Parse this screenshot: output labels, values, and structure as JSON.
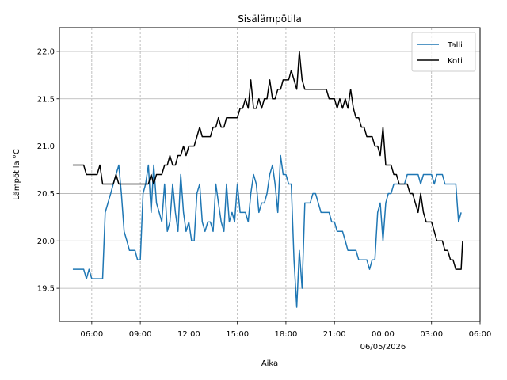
{
  "chart_data": {
    "type": "line",
    "title": "Sisälämpötila",
    "xlabel": "Aika",
    "ylabel": "Lämpötila °C",
    "x_unit": "hours",
    "xlim": [
      4.0,
      30.0
    ],
    "ylim": [
      19.15,
      22.25
    ],
    "x_ticks": [
      {
        "x": 6,
        "label": "06:00"
      },
      {
        "x": 9,
        "label": "09:00"
      },
      {
        "x": 12,
        "label": "12:00"
      },
      {
        "x": 15,
        "label": "15:00"
      },
      {
        "x": 18,
        "label": "18:00"
      },
      {
        "x": 21,
        "label": "21:00"
      },
      {
        "x": 24,
        "label": "00:00"
      },
      {
        "x": 27,
        "label": "03:00"
      },
      {
        "x": 30,
        "label": "06:00"
      }
    ],
    "x_date_label": {
      "x": 24,
      "label": "06/05/2026"
    },
    "y_ticks": [
      19.5,
      20.0,
      20.5,
      21.0,
      21.5,
      22.0
    ],
    "y_tick_labels": [
      "19.5",
      "20.0",
      "20.5",
      "21.0",
      "21.5",
      "22.0"
    ],
    "grid": {
      "horizontal": "solid",
      "vertical": "dashed"
    },
    "legend_position": "top-right",
    "series": [
      {
        "name": "Talli",
        "color": "#1f77b4",
        "points": [
          [
            4.83,
            19.7
          ],
          [
            5.17,
            19.7
          ],
          [
            5.5,
            19.7
          ],
          [
            5.67,
            19.6
          ],
          [
            5.83,
            19.7
          ],
          [
            6.0,
            19.6
          ],
          [
            6.33,
            19.6
          ],
          [
            6.5,
            19.6
          ],
          [
            6.67,
            19.6
          ],
          [
            6.83,
            20.3
          ],
          [
            7.0,
            20.4
          ],
          [
            7.17,
            20.5
          ],
          [
            7.33,
            20.6
          ],
          [
            7.5,
            20.7
          ],
          [
            7.67,
            20.8
          ],
          [
            7.83,
            20.5
          ],
          [
            8.0,
            20.1
          ],
          [
            8.17,
            20.0
          ],
          [
            8.33,
            19.9
          ],
          [
            8.5,
            19.9
          ],
          [
            8.67,
            19.9
          ],
          [
            8.83,
            19.8
          ],
          [
            9.0,
            19.8
          ],
          [
            9.17,
            20.5
          ],
          [
            9.33,
            20.6
          ],
          [
            9.5,
            20.8
          ],
          [
            9.67,
            20.3
          ],
          [
            9.83,
            20.8
          ],
          [
            10.0,
            20.4
          ],
          [
            10.17,
            20.3
          ],
          [
            10.33,
            20.2
          ],
          [
            10.5,
            20.6
          ],
          [
            10.67,
            20.1
          ],
          [
            10.83,
            20.2
          ],
          [
            11.0,
            20.6
          ],
          [
            11.17,
            20.3
          ],
          [
            11.33,
            20.1
          ],
          [
            11.5,
            20.7
          ],
          [
            11.67,
            20.3
          ],
          [
            11.83,
            20.1
          ],
          [
            12.0,
            20.2
          ],
          [
            12.17,
            20.0
          ],
          [
            12.33,
            20.0
          ],
          [
            12.5,
            20.5
          ],
          [
            12.67,
            20.6
          ],
          [
            12.83,
            20.2
          ],
          [
            13.0,
            20.1
          ],
          [
            13.17,
            20.2
          ],
          [
            13.33,
            20.2
          ],
          [
            13.5,
            20.1
          ],
          [
            13.67,
            20.6
          ],
          [
            13.83,
            20.4
          ],
          [
            14.0,
            20.2
          ],
          [
            14.17,
            20.1
          ],
          [
            14.33,
            20.6
          ],
          [
            14.5,
            20.2
          ],
          [
            14.67,
            20.3
          ],
          [
            14.83,
            20.2
          ],
          [
            15.0,
            20.6
          ],
          [
            15.17,
            20.3
          ],
          [
            15.33,
            20.3
          ],
          [
            15.5,
            20.3
          ],
          [
            15.67,
            20.2
          ],
          [
            15.83,
            20.5
          ],
          [
            16.0,
            20.7
          ],
          [
            16.17,
            20.6
          ],
          [
            16.33,
            20.3
          ],
          [
            16.5,
            20.4
          ],
          [
            16.67,
            20.4
          ],
          [
            16.83,
            20.5
          ],
          [
            17.0,
            20.7
          ],
          [
            17.17,
            20.8
          ],
          [
            17.33,
            20.6
          ],
          [
            17.5,
            20.3
          ],
          [
            17.67,
            20.9
          ],
          [
            17.83,
            20.7
          ],
          [
            18.0,
            20.7
          ],
          [
            18.17,
            20.6
          ],
          [
            18.33,
            20.6
          ],
          [
            18.5,
            19.8
          ],
          [
            18.67,
            19.3
          ],
          [
            18.83,
            19.9
          ],
          [
            19.0,
            19.5
          ],
          [
            19.17,
            20.4
          ],
          [
            19.33,
            20.4
          ],
          [
            19.5,
            20.4
          ],
          [
            19.67,
            20.5
          ],
          [
            19.83,
            20.5
          ],
          [
            20.0,
            20.4
          ],
          [
            20.17,
            20.3
          ],
          [
            20.33,
            20.3
          ],
          [
            20.5,
            20.3
          ],
          [
            20.67,
            20.3
          ],
          [
            20.83,
            20.2
          ],
          [
            21.0,
            20.2
          ],
          [
            21.17,
            20.1
          ],
          [
            21.33,
            20.1
          ],
          [
            21.5,
            20.1
          ],
          [
            21.67,
            20.0
          ],
          [
            21.83,
            19.9
          ],
          [
            22.0,
            19.9
          ],
          [
            22.17,
            19.9
          ],
          [
            22.33,
            19.9
          ],
          [
            22.5,
            19.8
          ],
          [
            22.67,
            19.8
          ],
          [
            22.83,
            19.8
          ],
          [
            23.0,
            19.8
          ],
          [
            23.17,
            19.7
          ],
          [
            23.33,
            19.8
          ],
          [
            23.5,
            19.8
          ],
          [
            23.67,
            20.3
          ],
          [
            23.83,
            20.4
          ],
          [
            24.0,
            20.0
          ],
          [
            24.17,
            20.4
          ],
          [
            24.33,
            20.5
          ],
          [
            24.5,
            20.5
          ],
          [
            24.67,
            20.6
          ],
          [
            24.83,
            20.6
          ],
          [
            25.0,
            20.6
          ],
          [
            25.17,
            20.6
          ],
          [
            25.33,
            20.6
          ],
          [
            25.5,
            20.7
          ],
          [
            25.67,
            20.7
          ],
          [
            25.83,
            20.7
          ],
          [
            26.0,
            20.7
          ],
          [
            26.17,
            20.7
          ],
          [
            26.33,
            20.6
          ],
          [
            26.5,
            20.7
          ],
          [
            26.67,
            20.7
          ],
          [
            26.83,
            20.7
          ],
          [
            27.0,
            20.7
          ],
          [
            27.17,
            20.6
          ],
          [
            27.33,
            20.7
          ],
          [
            27.5,
            20.7
          ],
          [
            27.67,
            20.7
          ],
          [
            27.83,
            20.6
          ],
          [
            28.0,
            20.6
          ],
          [
            28.17,
            20.6
          ],
          [
            28.33,
            20.6
          ],
          [
            28.5,
            20.6
          ],
          [
            28.67,
            20.2
          ],
          [
            28.83,
            20.3
          ]
        ]
      },
      {
        "name": "Koti",
        "color": "#000000",
        "points": [
          [
            4.83,
            20.8
          ],
          [
            5.17,
            20.8
          ],
          [
            5.5,
            20.8
          ],
          [
            5.67,
            20.7
          ],
          [
            5.83,
            20.7
          ],
          [
            6.0,
            20.7
          ],
          [
            6.17,
            20.7
          ],
          [
            6.33,
            20.7
          ],
          [
            6.5,
            20.8
          ],
          [
            6.67,
            20.6
          ],
          [
            6.83,
            20.6
          ],
          [
            7.0,
            20.6
          ],
          [
            7.17,
            20.6
          ],
          [
            7.33,
            20.6
          ],
          [
            7.5,
            20.7
          ],
          [
            7.67,
            20.6
          ],
          [
            7.83,
            20.6
          ],
          [
            8.0,
            20.6
          ],
          [
            8.33,
            20.6
          ],
          [
            8.67,
            20.6
          ],
          [
            9.0,
            20.6
          ],
          [
            9.33,
            20.6
          ],
          [
            9.5,
            20.6
          ],
          [
            9.67,
            20.7
          ],
          [
            9.83,
            20.6
          ],
          [
            10.0,
            20.7
          ],
          [
            10.17,
            20.7
          ],
          [
            10.33,
            20.7
          ],
          [
            10.5,
            20.8
          ],
          [
            10.67,
            20.8
          ],
          [
            10.83,
            20.9
          ],
          [
            11.0,
            20.8
          ],
          [
            11.17,
            20.8
          ],
          [
            11.33,
            20.9
          ],
          [
            11.5,
            20.9
          ],
          [
            11.67,
            21.0
          ],
          [
            11.83,
            20.9
          ],
          [
            12.0,
            21.0
          ],
          [
            12.17,
            21.0
          ],
          [
            12.33,
            21.0
          ],
          [
            12.5,
            21.1
          ],
          [
            12.67,
            21.2
          ],
          [
            12.83,
            21.1
          ],
          [
            13.0,
            21.1
          ],
          [
            13.17,
            21.1
          ],
          [
            13.33,
            21.1
          ],
          [
            13.5,
            21.2
          ],
          [
            13.67,
            21.2
          ],
          [
            13.83,
            21.3
          ],
          [
            14.0,
            21.2
          ],
          [
            14.17,
            21.2
          ],
          [
            14.33,
            21.3
          ],
          [
            14.5,
            21.3
          ],
          [
            14.67,
            21.3
          ],
          [
            14.83,
            21.3
          ],
          [
            15.0,
            21.3
          ],
          [
            15.17,
            21.4
          ],
          [
            15.33,
            21.4
          ],
          [
            15.5,
            21.5
          ],
          [
            15.67,
            21.4
          ],
          [
            15.83,
            21.7
          ],
          [
            16.0,
            21.4
          ],
          [
            16.17,
            21.4
          ],
          [
            16.33,
            21.5
          ],
          [
            16.5,
            21.4
          ],
          [
            16.67,
            21.5
          ],
          [
            16.83,
            21.5
          ],
          [
            17.0,
            21.7
          ],
          [
            17.17,
            21.5
          ],
          [
            17.33,
            21.5
          ],
          [
            17.5,
            21.6
          ],
          [
            17.67,
            21.6
          ],
          [
            17.83,
            21.7
          ],
          [
            18.0,
            21.7
          ],
          [
            18.17,
            21.7
          ],
          [
            18.33,
            21.8
          ],
          [
            18.5,
            21.7
          ],
          [
            18.67,
            21.6
          ],
          [
            18.83,
            22.0
          ],
          [
            19.0,
            21.7
          ],
          [
            19.17,
            21.6
          ],
          [
            19.33,
            21.6
          ],
          [
            19.5,
            21.6
          ],
          [
            19.67,
            21.6
          ],
          [
            19.83,
            21.6
          ],
          [
            20.0,
            21.6
          ],
          [
            20.17,
            21.6
          ],
          [
            20.33,
            21.6
          ],
          [
            20.5,
            21.6
          ],
          [
            20.67,
            21.5
          ],
          [
            20.83,
            21.5
          ],
          [
            21.0,
            21.5
          ],
          [
            21.17,
            21.4
          ],
          [
            21.33,
            21.5
          ],
          [
            21.5,
            21.4
          ],
          [
            21.67,
            21.5
          ],
          [
            21.83,
            21.4
          ],
          [
            22.0,
            21.6
          ],
          [
            22.17,
            21.4
          ],
          [
            22.33,
            21.3
          ],
          [
            22.5,
            21.3
          ],
          [
            22.67,
            21.2
          ],
          [
            22.83,
            21.2
          ],
          [
            23.0,
            21.1
          ],
          [
            23.17,
            21.1
          ],
          [
            23.33,
            21.1
          ],
          [
            23.5,
            21.0
          ],
          [
            23.67,
            21.0
          ],
          [
            23.83,
            20.9
          ],
          [
            24.0,
            21.2
          ],
          [
            24.17,
            20.8
          ],
          [
            24.33,
            20.8
          ],
          [
            24.5,
            20.8
          ],
          [
            24.67,
            20.7
          ],
          [
            24.83,
            20.7
          ],
          [
            25.0,
            20.6
          ],
          [
            25.17,
            20.6
          ],
          [
            25.33,
            20.6
          ],
          [
            25.5,
            20.6
          ],
          [
            25.67,
            20.5
          ],
          [
            25.83,
            20.5
          ],
          [
            26.0,
            20.4
          ],
          [
            26.17,
            20.3
          ],
          [
            26.33,
            20.5
          ],
          [
            26.5,
            20.3
          ],
          [
            26.67,
            20.2
          ],
          [
            26.83,
            20.2
          ],
          [
            27.0,
            20.2
          ],
          [
            27.17,
            20.1
          ],
          [
            27.33,
            20.0
          ],
          [
            27.5,
            20.0
          ],
          [
            27.67,
            20.0
          ],
          [
            27.83,
            19.9
          ],
          [
            28.0,
            19.9
          ],
          [
            28.17,
            19.8
          ],
          [
            28.33,
            19.8
          ],
          [
            28.5,
            19.7
          ],
          [
            28.67,
            19.7
          ],
          [
            28.83,
            19.7
          ],
          [
            28.92,
            20.0
          ]
        ]
      }
    ]
  }
}
